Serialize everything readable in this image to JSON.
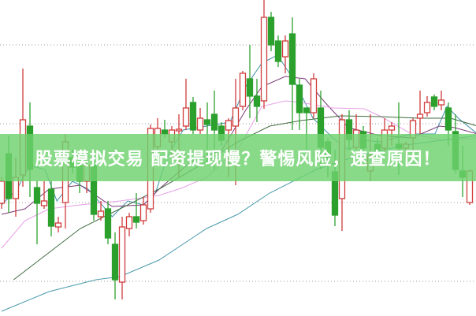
{
  "chart_data": {
    "type": "candlestick",
    "ylim": [
      5.6,
      45.7
    ],
    "grid": true,
    "gridlines": [
      10,
      20,
      30,
      40
    ],
    "colors": {
      "up": "#d03c3c",
      "down": "#2ca02c",
      "grid": "#9a9a9a"
    },
    "candles": [
      [
        19.9,
        23.2,
        19.2,
        22.7
      ],
      [
        26.2,
        28.5,
        18.7,
        20.5
      ],
      [
        20.5,
        25.7,
        18.2,
        23.2
      ],
      [
        23.5,
        37,
        22,
        30.5
      ],
      [
        29.7,
        32.7,
        20.7,
        24.2
      ],
      [
        21.9,
        22.7,
        14.7,
        19.9
      ],
      [
        19.6,
        22.7,
        19.2,
        20.2
      ],
      [
        21.7,
        22.7,
        15.7,
        17
      ],
      [
        16.9,
        18.2,
        16.2,
        17.4
      ],
      [
        20,
        28.7,
        16.7,
        27.7
      ],
      [
        25.7,
        26.7,
        23.7,
        24.5
      ],
      [
        24.7,
        25.7,
        21.2,
        22.7
      ],
      [
        22.7,
        26.2,
        21.2,
        24.7
      ],
      [
        24.7,
        25.7,
        17.7,
        18.5
      ],
      [
        18.2,
        20.2,
        17.7,
        18.9
      ],
      [
        19.2,
        20.2,
        14.7,
        15.5
      ],
      [
        14.7,
        16.2,
        7.7,
        10.2
      ],
      [
        9.9,
        18.2,
        7.7,
        16.9
      ],
      [
        16.7,
        18.7,
        15.7,
        18.2
      ],
      [
        18.2,
        21.2,
        16.7,
        17.5
      ],
      [
        17.7,
        20.7,
        17.2,
        19.7
      ],
      [
        19.2,
        29.9,
        18.7,
        29.4
      ],
      [
        27.1,
        30.7,
        26.7,
        29.4
      ],
      [
        29.2,
        30.5,
        28.2,
        28.7
      ],
      [
        27.7,
        29.7,
        25.7,
        29.2
      ],
      [
        29.1,
        31.2,
        23.2,
        29.3
      ],
      [
        29.7,
        35.7,
        29.2,
        32
      ],
      [
        32.7,
        33.4,
        28.7,
        29.2
      ],
      [
        29.2,
        32,
        28.7,
        30.7
      ],
      [
        30.5,
        32.7,
        24.7,
        29.9
      ],
      [
        31.2,
        34.2,
        24.2,
        29.2
      ],
      [
        29.7,
        30.2,
        27.2,
        27.9
      ],
      [
        29.2,
        30.7,
        23.2,
        30.4
      ],
      [
        29.7,
        35.7,
        22.2,
        32
      ],
      [
        32.2,
        36.7,
        31.7,
        36.4
      ],
      [
        35.7,
        40,
        30.7,
        33.5
      ],
      [
        33.5,
        35.7,
        30.2,
        32.2
      ],
      [
        32.9,
        45.7,
        31.9,
        43.5
      ],
      [
        43.5,
        44.2,
        39.2,
        40
      ],
      [
        40.5,
        41.2,
        37.2,
        37.9
      ],
      [
        38.5,
        41.2,
        36.4,
        40.5
      ],
      [
        41.4,
        43.5,
        29.2,
        35
      ],
      [
        34.9,
        35.7,
        29.2,
        31.4
      ],
      [
        32,
        32,
        26.7,
        31.4
      ],
      [
        31.4,
        36.4,
        30.7,
        35.7
      ],
      [
        32,
        34.2,
        24.2,
        27
      ],
      [
        27.7,
        28.2,
        23.2,
        25.7
      ],
      [
        23.9,
        26.7,
        17,
        18.4
      ],
      [
        20.5,
        31.2,
        16.4,
        30.5
      ],
      [
        30.5,
        31.7,
        26.7,
        28
      ],
      [
        27,
        31.2,
        26.7,
        29.2
      ],
      [
        29,
        29.7,
        26.7,
        26.9
      ],
      [
        24,
        31.2,
        22.7,
        26
      ],
      [
        27.4,
        28.2,
        26.2,
        26.7
      ],
      [
        26.9,
        30.7,
        26.2,
        29.2
      ],
      [
        29.2,
        30.2,
        27.2,
        29.7
      ],
      [
        27.4,
        32.7,
        23.5,
        26.9
      ],
      [
        26.9,
        27.7,
        25.7,
        27.4
      ],
      [
        28.2,
        30.7,
        26.2,
        30.4
      ],
      [
        30.7,
        34.2,
        28.7,
        31.2
      ],
      [
        31.4,
        33.5,
        30.9,
        32.7
      ],
      [
        33.4,
        33.7,
        31.7,
        32.2
      ],
      [
        32.4,
        34.2,
        31.7,
        33
      ],
      [
        32,
        32.7,
        27.2,
        29.2
      ],
      [
        29,
        31.2,
        23.7,
        24.2
      ],
      [
        24,
        27.2,
        20.7,
        23.2
      ],
      [
        20,
        24.2,
        19.7,
        24
      ]
    ],
    "moving_averages": [
      {
        "color": "#3d8fa8",
        "points": [
          [
            0,
            19.7
          ],
          [
            2.2,
            21.7
          ],
          [
            3.9,
            24.7
          ],
          [
            6.1,
            24.2
          ],
          [
            7.8,
            20.2
          ],
          [
            10,
            22.7
          ],
          [
            12.2,
            21.7
          ],
          [
            15.6,
            18.2
          ],
          [
            17.8,
            20.2
          ],
          [
            20,
            19.7
          ],
          [
            21.7,
            21.2
          ],
          [
            23.3,
            25.7
          ],
          [
            25.6,
            29.2
          ],
          [
            28.9,
            29.7
          ],
          [
            32.2,
            30.2
          ],
          [
            34.4,
            34.7
          ],
          [
            36.7,
            37.7
          ],
          [
            38.9,
            38.7
          ],
          [
            41.1,
            35.7
          ],
          [
            43.9,
            30.7
          ],
          [
            46.7,
            28.2
          ],
          [
            48.9,
            26.7
          ],
          [
            51.1,
            27.9
          ],
          [
            53.3,
            27.7
          ],
          [
            57.8,
            28.7
          ],
          [
            61.1,
            28.7
          ],
          [
            62.8,
            32.2
          ],
          [
            64.4,
            30.7
          ],
          [
            67.1,
            28.7
          ]
        ]
      },
      {
        "color": "#7a3a78",
        "points": [
          [
            0,
            18.5
          ],
          [
            3.3,
            19.2
          ],
          [
            6.7,
            21.7
          ],
          [
            11.1,
            22.2
          ],
          [
            15.6,
            19.5
          ],
          [
            20,
            19.7
          ],
          [
            22.2,
            21.7
          ],
          [
            26.7,
            25.2
          ],
          [
            31.1,
            26.7
          ],
          [
            34.4,
            31.7
          ],
          [
            36.7,
            34.7
          ],
          [
            40,
            36
          ],
          [
            42.8,
            35.7
          ],
          [
            45.6,
            32.7
          ],
          [
            48.9,
            29.5
          ],
          [
            53.3,
            28.5
          ],
          [
            57.8,
            28.2
          ],
          [
            61.7,
            29.7
          ],
          [
            63.9,
            29.5
          ],
          [
            67.1,
            28.7
          ]
        ]
      },
      {
        "color": "#e6a0e6",
        "points": [
          [
            0,
            14.2
          ],
          [
            3.3,
            17.7
          ],
          [
            6.7,
            19.2
          ],
          [
            11.1,
            19.7
          ],
          [
            16.7,
            20.2
          ],
          [
            22.2,
            20.9
          ],
          [
            25.6,
            21.9
          ],
          [
            28.9,
            23.2
          ],
          [
            33.3,
            26.7
          ],
          [
            36.7,
            32.2
          ],
          [
            40,
            32.9
          ],
          [
            42.2,
            32.7
          ],
          [
            46.7,
            32
          ],
          [
            51.1,
            31.9
          ],
          [
            53.3,
            31
          ],
          [
            57.8,
            28.7
          ],
          [
            62.2,
            27.9
          ],
          [
            67.1,
            28.2
          ]
        ]
      },
      {
        "color": "#3f6b3f",
        "points": [
          [
            1.7,
            10.2
          ],
          [
            11.1,
            16.7
          ],
          [
            16.7,
            19.2
          ],
          [
            22.2,
            21.7
          ],
          [
            28.9,
            25.2
          ],
          [
            33.3,
            27.7
          ],
          [
            37.8,
            29.7
          ],
          [
            42.2,
            30.4
          ],
          [
            47.8,
            31
          ],
          [
            53.3,
            30.9
          ],
          [
            58.9,
            30.7
          ],
          [
            63.3,
            30.7
          ],
          [
            67.1,
            29.7
          ]
        ]
      },
      {
        "color": "#4a9aac",
        "points": [
          [
            0,
            6.2
          ],
          [
            6.7,
            8.7
          ],
          [
            13.3,
            10.2
          ],
          [
            16.7,
            10.6
          ],
          [
            22.2,
            12.7
          ],
          [
            28.9,
            16.7
          ],
          [
            33.3,
            18.5
          ],
          [
            37.8,
            21.2
          ],
          [
            44.4,
            24.2
          ],
          [
            51.1,
            26.2
          ],
          [
            57.8,
            27.4
          ],
          [
            67.1,
            28.5
          ]
        ]
      }
    ]
  },
  "banner": {
    "text": "股票模拟交易 配资提现慢？警惕风险，速查原因！",
    "color": "#6ed26e"
  }
}
